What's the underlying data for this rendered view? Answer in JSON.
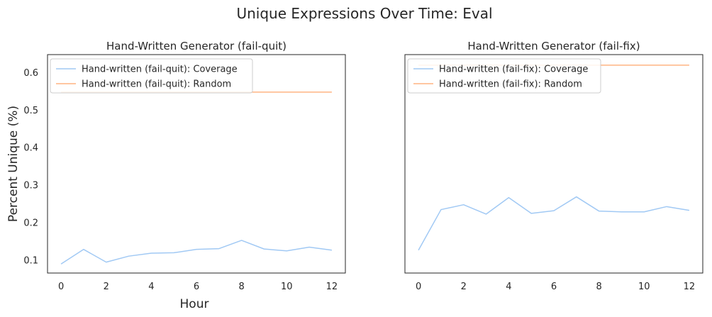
{
  "figure": {
    "title": "Unique Expressions Over Time: Eval",
    "xlabel": "Hour",
    "ylabel": "Percent Unique (%)",
    "colors": {
      "coverage": "#a1c9f4",
      "random": "#ffb482",
      "frame": "#262626",
      "text": "#262626"
    }
  },
  "chart_data": [
    {
      "type": "line",
      "title": "Hand-Written Generator (fail-quit)",
      "x": [
        0,
        1,
        2,
        3,
        4,
        5,
        6,
        7,
        8,
        9,
        10,
        11,
        12
      ],
      "xticks": [
        "0",
        "2",
        "4",
        "6",
        "8",
        "10",
        "12"
      ],
      "xlim": [
        -0.6,
        12.6
      ],
      "yticks": [
        "0.1",
        "0.2",
        "0.3",
        "0.4",
        "0.5",
        "0.6"
      ],
      "ylim": [
        0.066,
        0.648
      ],
      "legend_position": "upper left",
      "series": [
        {
          "name": "Hand-written (fail-quit): Coverage",
          "key": "coverage",
          "values": [
            0.09,
            0.129,
            0.095,
            0.111,
            0.119,
            0.12,
            0.129,
            0.131,
            0.153,
            0.13,
            0.125,
            0.135,
            0.127
          ]
        },
        {
          "name": "Hand-written (fail-quit): Random",
          "key": "random",
          "values": [
            0.548,
            0.548,
            0.548,
            0.548,
            0.548,
            0.548,
            0.548,
            0.548,
            0.548,
            0.548,
            0.548,
            0.548,
            0.548
          ]
        }
      ]
    },
    {
      "type": "line",
      "title": "Hand-Written Generator (fail-fix)",
      "x": [
        0,
        1,
        2,
        3,
        4,
        5,
        6,
        7,
        8,
        9,
        10,
        11,
        12
      ],
      "xticks": [
        "0",
        "2",
        "4",
        "6",
        "8",
        "10",
        "12"
      ],
      "xlim": [
        -0.6,
        12.6
      ],
      "yticks": [],
      "ylim": [
        0.066,
        0.648
      ],
      "legend_position": "upper left",
      "series": [
        {
          "name": "Hand-written (fail-fix): Coverage",
          "key": "coverage",
          "values": [
            0.127,
            0.235,
            0.248,
            0.223,
            0.267,
            0.225,
            0.232,
            0.269,
            0.231,
            0.229,
            0.229,
            0.243,
            0.233
          ]
        },
        {
          "name": "Hand-written (fail-fix): Random",
          "key": "random",
          "values": [
            0.62,
            0.62,
            0.62,
            0.62,
            0.62,
            0.62,
            0.62,
            0.62,
            0.62,
            0.62,
            0.62,
            0.62,
            0.62
          ]
        }
      ]
    }
  ]
}
